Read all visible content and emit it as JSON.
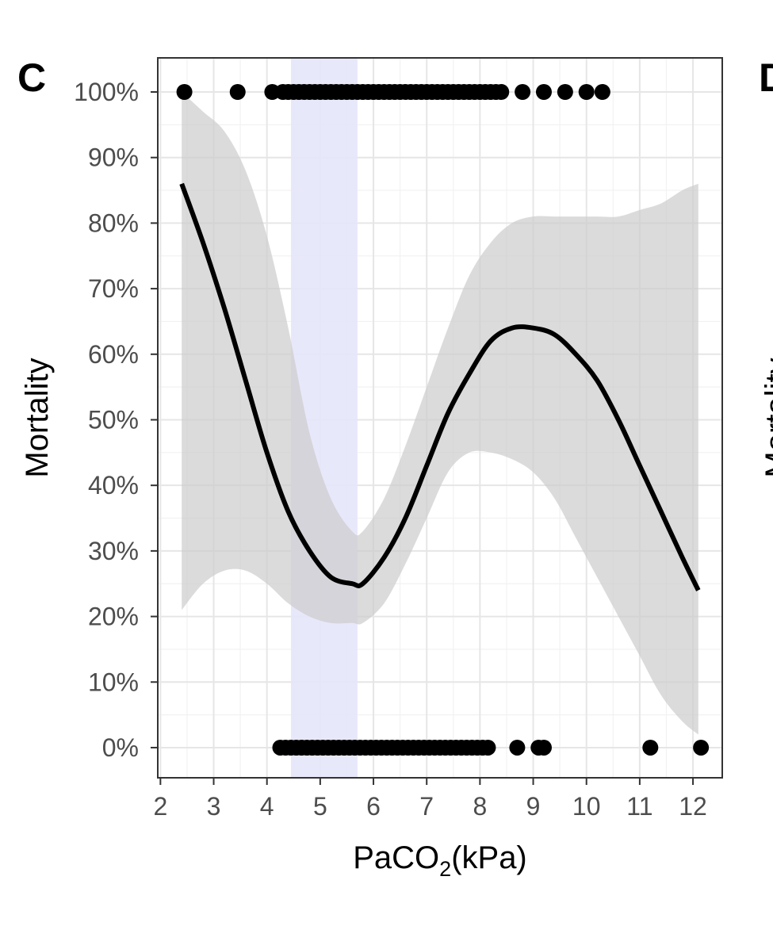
{
  "panel": {
    "letter": "C",
    "next_letter": "D"
  },
  "chart_data": {
    "type": "scatter",
    "title": "",
    "xlabel_main": "PaCO",
    "xlabel_sub": "2",
    "xlabel_unit": "(kPa)",
    "ylabel": "Mortality",
    "next_panel_ylabel": "Mortality",
    "xlim": [
      1.95,
      12.55
    ],
    "ylim": [
      -0.046,
      1.052
    ],
    "x_ticks": [
      2,
      3,
      4,
      5,
      6,
      7,
      8,
      9,
      10,
      11,
      12
    ],
    "x_tick_labels": [
      "2",
      "3",
      "4",
      "5",
      "6",
      "7",
      "8",
      "9",
      "10",
      "11",
      "12"
    ],
    "y_ticks": [
      0,
      0.1,
      0.2,
      0.3,
      0.4,
      0.5,
      0.6,
      0.7,
      0.8,
      0.9,
      1.0
    ],
    "y_tick_labels": [
      "0%",
      "10%",
      "20%",
      "30%",
      "40%",
      "50%",
      "60%",
      "70%",
      "80%",
      "90%",
      "100%"
    ],
    "grid": true,
    "highlight_band": {
      "x_from": 4.45,
      "x_to": 5.7,
      "color": "#e5e5fb"
    },
    "smooth_fit": {
      "x": [
        2.4,
        2.8,
        3.2,
        3.6,
        4.0,
        4.4,
        4.8,
        5.2,
        5.6,
        5.8,
        6.2,
        6.6,
        7.0,
        7.4,
        7.8,
        8.2,
        8.6,
        9.0,
        9.4,
        9.8,
        10.2,
        10.6,
        11.0,
        11.4,
        11.8,
        12.1
      ],
      "y": [
        0.86,
        0.77,
        0.67,
        0.56,
        0.45,
        0.36,
        0.3,
        0.26,
        0.25,
        0.25,
        0.29,
        0.35,
        0.43,
        0.51,
        0.57,
        0.62,
        0.64,
        0.64,
        0.63,
        0.6,
        0.56,
        0.5,
        0.43,
        0.36,
        0.29,
        0.24
      ],
      "lower": [
        0.21,
        0.25,
        0.27,
        0.27,
        0.25,
        0.22,
        0.2,
        0.19,
        0.19,
        0.19,
        0.22,
        0.28,
        0.35,
        0.42,
        0.45,
        0.45,
        0.44,
        0.42,
        0.38,
        0.32,
        0.26,
        0.2,
        0.14,
        0.08,
        0.04,
        0.02
      ],
      "upper": [
        1.0,
        0.97,
        0.94,
        0.88,
        0.78,
        0.64,
        0.48,
        0.38,
        0.33,
        0.33,
        0.38,
        0.46,
        0.55,
        0.64,
        0.72,
        0.77,
        0.8,
        0.81,
        0.81,
        0.81,
        0.81,
        0.81,
        0.82,
        0.83,
        0.85,
        0.86
      ],
      "line_color": "#000000",
      "band_color": "#cccccc"
    },
    "series": [
      {
        "outcome": 1,
        "x": [
          2.45,
          3.45,
          4.1,
          4.3,
          4.4,
          4.5,
          4.6,
          4.7,
          4.8,
          4.9,
          5.0,
          5.1,
          5.2,
          5.3,
          5.4,
          5.5,
          5.6,
          5.7,
          5.8,
          5.9,
          6.0,
          6.1,
          6.2,
          6.3,
          6.4,
          6.5,
          6.6,
          6.7,
          6.8,
          6.9,
          7.0,
          7.1,
          7.2,
          7.3,
          7.4,
          7.5,
          7.6,
          7.7,
          7.8,
          7.9,
          8.0,
          8.1,
          8.2,
          8.3,
          8.4,
          8.8,
          9.2,
          9.6,
          10.0,
          10.3
        ],
        "color": "#000000"
      },
      {
        "outcome": 0,
        "x": [
          4.25,
          4.35,
          4.45,
          4.55,
          4.65,
          4.75,
          4.85,
          4.95,
          5.05,
          5.15,
          5.25,
          5.35,
          5.45,
          5.55,
          5.65,
          5.75,
          5.85,
          5.95,
          6.05,
          6.15,
          6.25,
          6.35,
          6.45,
          6.55,
          6.65,
          6.75,
          6.85,
          6.95,
          7.05,
          7.15,
          7.25,
          7.35,
          7.45,
          7.55,
          7.65,
          7.75,
          7.85,
          7.95,
          8.05,
          8.15,
          8.7,
          9.1,
          9.2,
          11.2,
          12.15
        ],
        "color": "#000000"
      }
    ]
  }
}
